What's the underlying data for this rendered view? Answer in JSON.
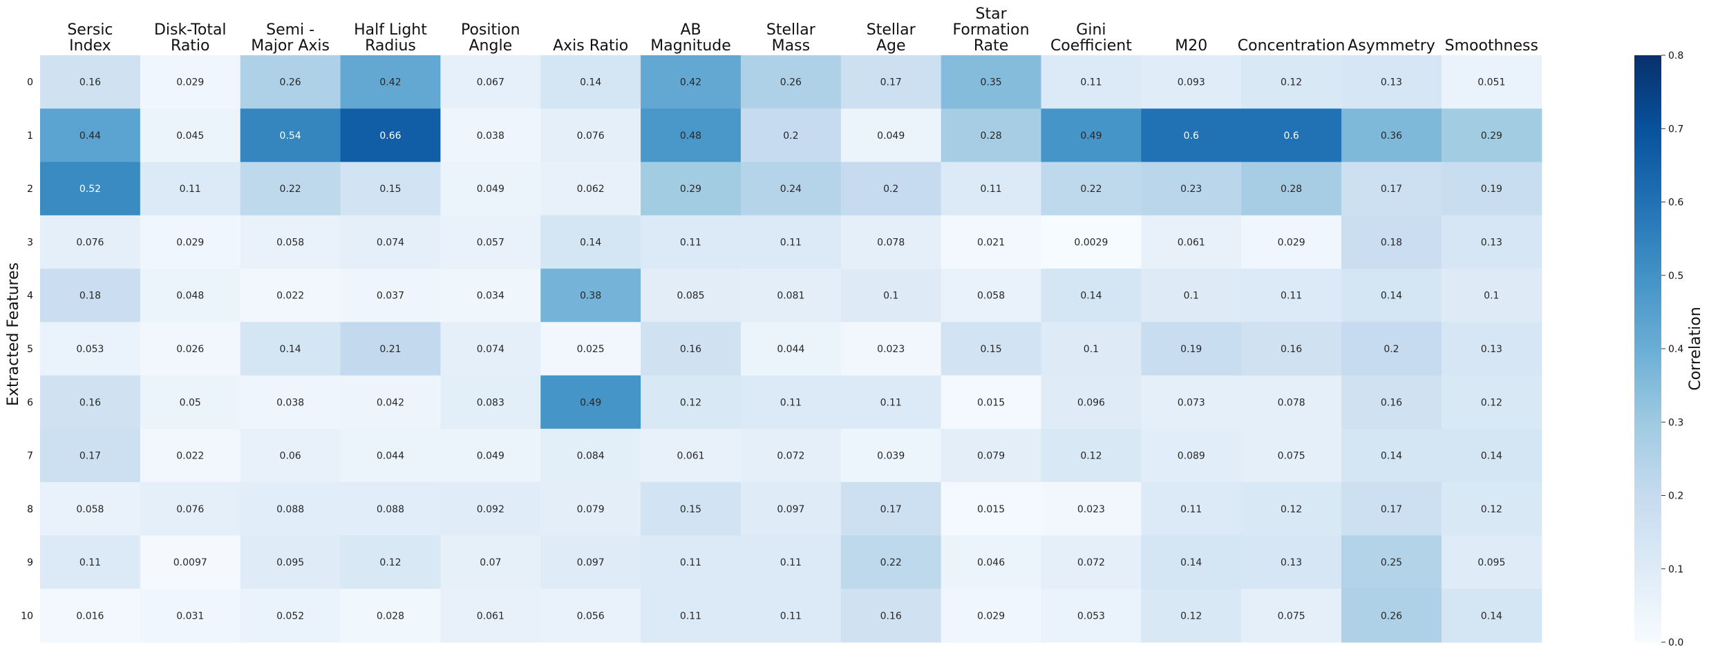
{
  "chart_data": {
    "type": "heatmap",
    "columns": [
      "Sersic Index",
      "Disk-Total Ratio",
      "Semi - Major Axis",
      "Half Light Radius",
      "Position Angle",
      "Axis Ratio",
      "AB Magnitude",
      "Stellar Mass",
      "Stellar Age",
      "Star Formation Rate",
      "Gini Coefficient",
      "M20",
      "Concentration",
      "Asymmetry",
      "Smoothness"
    ],
    "column_label_lines": [
      [
        "Sersic",
        "Index"
      ],
      [
        "Disk-Total",
        "Ratio"
      ],
      [
        "Semi -",
        "Major Axis"
      ],
      [
        "Half Light",
        "Radius"
      ],
      [
        "Position",
        "Angle"
      ],
      [
        "Axis Ratio"
      ],
      [
        "AB",
        "Magnitude"
      ],
      [
        "Stellar",
        "Mass"
      ],
      [
        "Stellar",
        "Age"
      ],
      [
        "Star",
        "Formation",
        "Rate"
      ],
      [
        "Gini",
        "Coefficient"
      ],
      [
        "M20"
      ],
      [
        "Concentration"
      ],
      [
        "Asymmetry"
      ],
      [
        "Smoothness"
      ]
    ],
    "rows": [
      "0",
      "1",
      "2",
      "3",
      "4",
      "5",
      "6",
      "7",
      "8",
      "9",
      "10"
    ],
    "values": [
      [
        0.16,
        0.029,
        0.26,
        0.42,
        0.067,
        0.14,
        0.42,
        0.26,
        0.17,
        0.35,
        0.11,
        0.093,
        0.12,
        0.13,
        0.051
      ],
      [
        0.44,
        0.045,
        0.54,
        0.66,
        0.038,
        0.076,
        0.48,
        0.2,
        0.049,
        0.28,
        0.49,
        0.6,
        0.6,
        0.36,
        0.29
      ],
      [
        0.52,
        0.11,
        0.22,
        0.15,
        0.049,
        0.062,
        0.29,
        0.24,
        0.2,
        0.11,
        0.22,
        0.23,
        0.28,
        0.17,
        0.19
      ],
      [
        0.076,
        0.029,
        0.058,
        0.074,
        0.057,
        0.14,
        0.11,
        0.11,
        0.078,
        0.021,
        0.0029,
        0.061,
        0.029,
        0.18,
        0.13
      ],
      [
        0.18,
        0.048,
        0.022,
        0.037,
        0.034,
        0.38,
        0.085,
        0.081,
        0.1,
        0.058,
        0.14,
        0.1,
        0.11,
        0.14,
        0.1
      ],
      [
        0.053,
        0.026,
        0.14,
        0.21,
        0.074,
        0.025,
        0.16,
        0.044,
        0.023,
        0.15,
        0.1,
        0.19,
        0.16,
        0.2,
        0.13
      ],
      [
        0.16,
        0.05,
        0.038,
        0.042,
        0.083,
        0.49,
        0.12,
        0.11,
        0.11,
        0.015,
        0.096,
        0.073,
        0.078,
        0.16,
        0.12
      ],
      [
        0.17,
        0.022,
        0.06,
        0.044,
        0.049,
        0.084,
        0.061,
        0.072,
        0.039,
        0.079,
        0.12,
        0.089,
        0.075,
        0.14,
        0.14
      ],
      [
        0.058,
        0.076,
        0.088,
        0.088,
        0.092,
        0.079,
        0.15,
        0.097,
        0.17,
        0.015,
        0.023,
        0.11,
        0.12,
        0.17,
        0.12
      ],
      [
        0.11,
        0.0097,
        0.095,
        0.12,
        0.07,
        0.097,
        0.11,
        0.11,
        0.22,
        0.046,
        0.072,
        0.14,
        0.13,
        0.25,
        0.095
      ],
      [
        0.016,
        0.031,
        0.052,
        0.028,
        0.061,
        0.056,
        0.11,
        0.11,
        0.16,
        0.029,
        0.053,
        0.12,
        0.075,
        0.26,
        0.14
      ]
    ],
    "ylabel": "Extracted Features",
    "colorbar_label": "Correlation",
    "vmin": 0.0,
    "vmax": 0.8,
    "colorbar_ticks": [
      "0.0",
      "0.1",
      "0.2",
      "0.3",
      "0.4",
      "0.5",
      "0.6",
      "0.7",
      "0.8"
    ],
    "colormap": "Blues",
    "colormap_stops": [
      "#f7fbff",
      "#deebf7",
      "#c6dbef",
      "#9ecae1",
      "#6baed6",
      "#4292c6",
      "#2171b5",
      "#08519c",
      "#08306b"
    ],
    "annotated": true,
    "grid": false
  }
}
